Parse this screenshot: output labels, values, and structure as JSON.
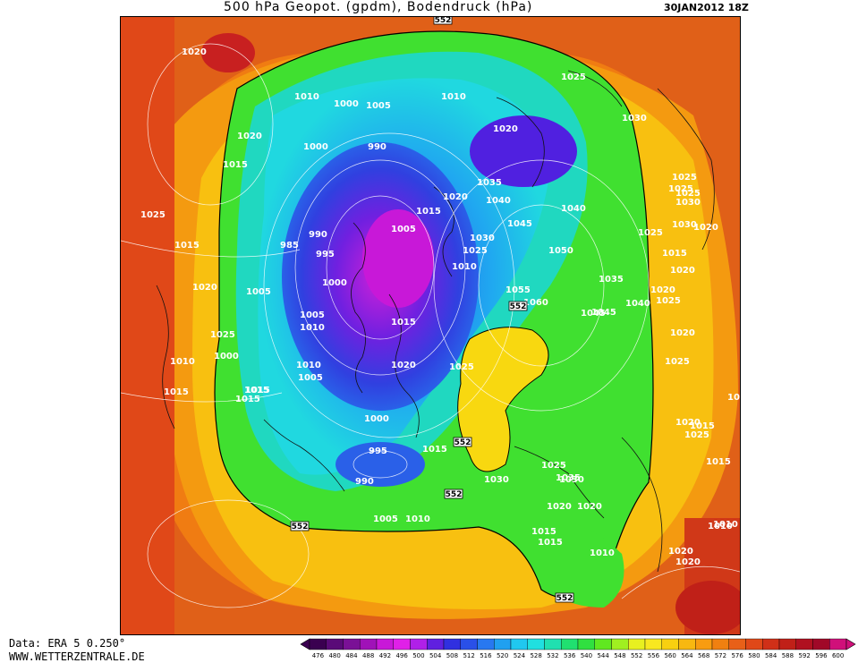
{
  "header": {
    "title": "500 hPa Geopot. (gpdm), Bodendruck (hPa)",
    "datestamp": "30JAN2012 18Z"
  },
  "footer": {
    "data_source": "Data: ERA 5 0.250°",
    "website": "WWW.WETTERZENTRALE.DE"
  },
  "legend": {
    "values": [
      "476",
      "480",
      "484",
      "488",
      "492",
      "496",
      "500",
      "504",
      "508",
      "512",
      "516",
      "520",
      "524",
      "528",
      "532",
      "536",
      "540",
      "544",
      "548",
      "552",
      "556",
      "560",
      "564",
      "568",
      "572",
      "576",
      "580",
      "584",
      "588",
      "592",
      "596",
      "600"
    ],
    "colors": [
      "#3a0050",
      "#5a0a78",
      "#7a1096",
      "#a012b8",
      "#c818d8",
      "#e020e8",
      "#b020e8",
      "#6020e0",
      "#3030e0",
      "#2a50e8",
      "#2878f0",
      "#20a0f0",
      "#20c8f0",
      "#20e0e0",
      "#20e0b0",
      "#20e070",
      "#30e040",
      "#60e820",
      "#a0f020",
      "#e8f020",
      "#f8e820",
      "#f8d010",
      "#f8b810",
      "#f89c10",
      "#f08010",
      "#e86018",
      "#e04818",
      "#d03018",
      "#c02018",
      "#b01020",
      "#a00828",
      "#d0107a"
    ]
  },
  "pressure_labels": [
    {
      "text": "1020"
    },
    {
      "text": "1015"
    },
    {
      "text": "1020"
    },
    {
      "text": "1025"
    },
    {
      "text": "1015"
    },
    {
      "text": "1020"
    },
    {
      "text": "1025"
    },
    {
      "text": "1015"
    },
    {
      "text": "1010"
    },
    {
      "text": "1000"
    },
    {
      "text": "1005"
    },
    {
      "text": "1010"
    },
    {
      "text": "1000"
    },
    {
      "text": "990"
    },
    {
      "text": "1020"
    },
    {
      "text": "1025"
    },
    {
      "text": "1030"
    },
    {
      "text": "1035"
    },
    {
      "text": "1040"
    },
    {
      "text": "1020"
    },
    {
      "text": "1015"
    },
    {
      "text": "1005"
    },
    {
      "text": "990"
    },
    {
      "text": "985"
    },
    {
      "text": "995"
    },
    {
      "text": "1030"
    },
    {
      "text": "1025"
    },
    {
      "text": "1045"
    },
    {
      "text": "1050"
    },
    {
      "text": "1040"
    },
    {
      "text": "1025"
    },
    {
      "text": "1000"
    },
    {
      "text": "1005"
    },
    {
      "text": "1010"
    },
    {
      "text": "1055"
    },
    {
      "text": "1060"
    },
    {
      "text": "1035"
    },
    {
      "text": "1045"
    },
    {
      "text": "1040"
    },
    {
      "text": "1020"
    },
    {
      "text": "1005"
    },
    {
      "text": "1010"
    },
    {
      "text": "1015"
    },
    {
      "text": "1015"
    },
    {
      "text": "1010"
    },
    {
      "text": "1000"
    },
    {
      "text": "1010"
    },
    {
      "text": "1005"
    },
    {
      "text": "1020"
    },
    {
      "text": "1025"
    },
    {
      "text": "1015"
    },
    {
      "text": "1015"
    },
    {
      "text": "1000"
    },
    {
      "text": "995"
    },
    {
      "text": "990"
    },
    {
      "text": "1015"
    },
    {
      "text": "1030"
    },
    {
      "text": "1025"
    },
    {
      "text": "1020"
    },
    {
      "text": "1015"
    },
    {
      "text": "1030"
    },
    {
      "text": "1005"
    },
    {
      "text": "1010"
    },
    {
      "text": "1045"
    },
    {
      "text": "1035"
    },
    {
      "text": "1020"
    },
    {
      "text": "1025"
    },
    {
      "text": "1015"
    },
    {
      "text": "1010"
    },
    {
      "text": "1010"
    },
    {
      "text": "1030"
    },
    {
      "text": "1025"
    },
    {
      "text": "1030"
    },
    {
      "text": "1015"
    },
    {
      "text": "1020"
    },
    {
      "text": "1025"
    },
    {
      "text": "1020"
    },
    {
      "text": "1025"
    },
    {
      "text": "1015"
    },
    {
      "text": "1020"
    },
    {
      "text": "1020"
    },
    {
      "text": "1025"
    },
    {
      "text": "1020"
    },
    {
      "text": "1020"
    },
    {
      "text": "1015"
    },
    {
      "text": "1010"
    },
    {
      "text": "1025"
    },
    {
      "text": "1020"
    }
  ],
  "geopotential_labels": [
    {
      "text": "552"
    },
    {
      "text": "552"
    },
    {
      "text": "552"
    },
    {
      "text": "552"
    },
    {
      "text": "552"
    },
    {
      "text": "552"
    }
  ]
}
